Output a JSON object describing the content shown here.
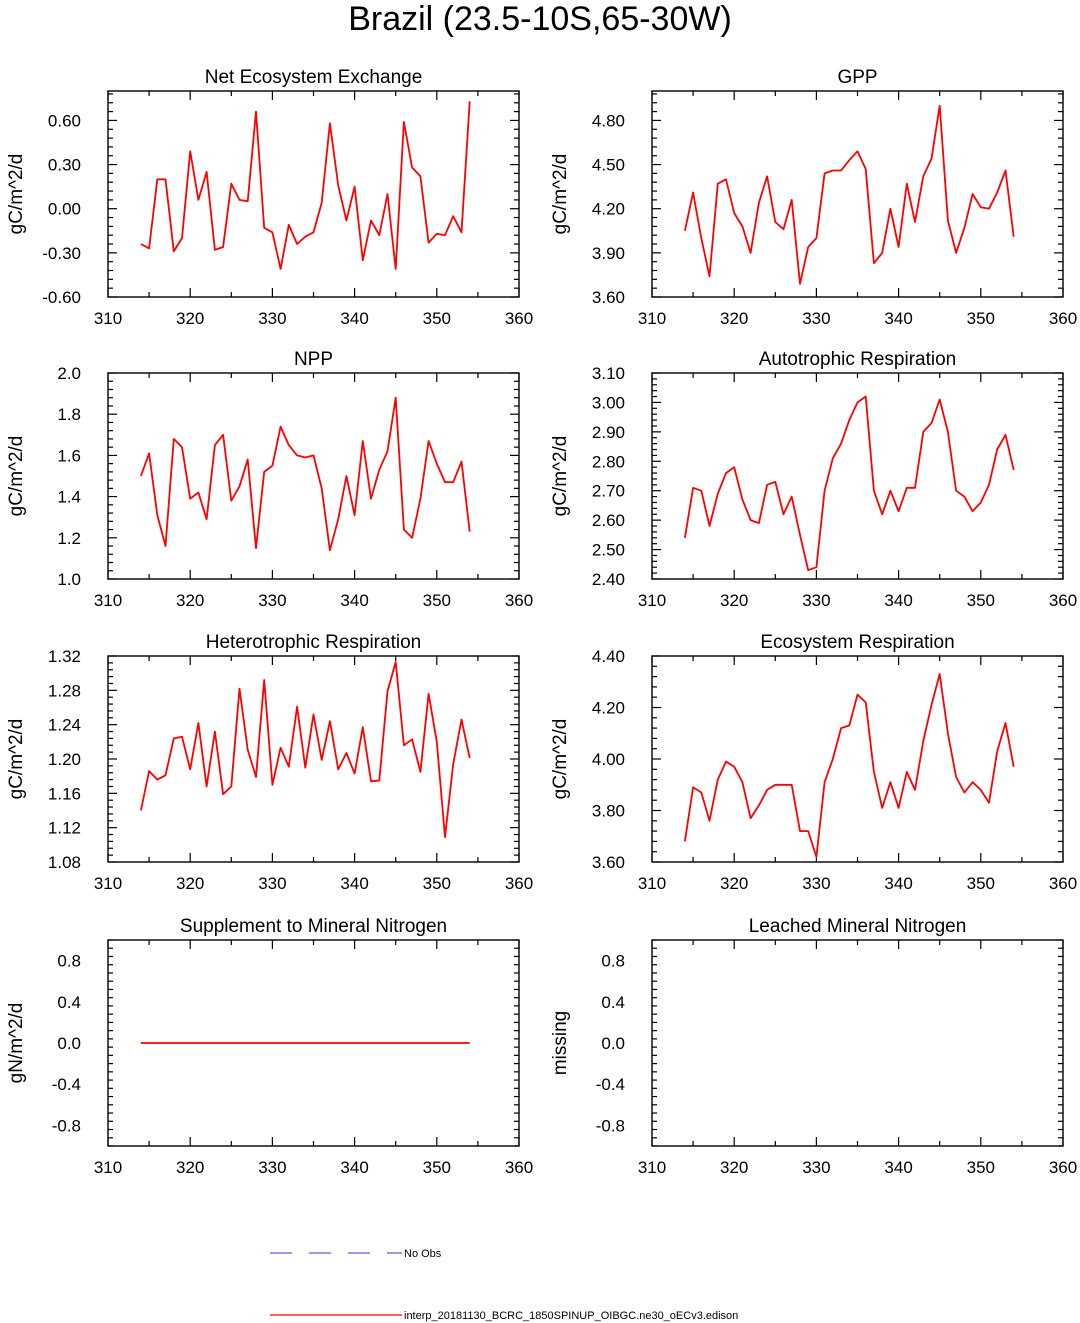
{
  "figure_title": "Brazil (23.5-10S,65-30W)",
  "colors": {
    "model": "#ff0000",
    "obs": "#5a5af0",
    "axis": "#000000"
  },
  "legend": {
    "obs_label": "No Obs",
    "model_label": "interp_20181130_BCRC_1850SPINUP_OIBGC.ne30_oECv3.edison"
  },
  "chart_data": [
    {
      "type": "line",
      "title": "Net Ecosystem Exchange",
      "ylabel": "gC/m^2/d",
      "xlim": [
        310,
        360
      ],
      "ylim": [
        -0.6,
        0.8
      ],
      "xticks": [
        "310",
        "320",
        "330",
        "340",
        "350",
        "360"
      ],
      "yticks": [
        "-0.60",
        "-0.30",
        "0.00",
        "0.30",
        "0.60"
      ],
      "x": [
        314,
        315,
        316,
        317,
        318,
        319,
        320,
        321,
        322,
        323,
        324,
        325,
        326,
        327,
        328,
        329,
        330,
        331,
        332,
        333,
        334,
        335,
        336,
        337,
        338,
        339,
        340,
        341,
        342,
        343,
        344,
        345,
        346,
        347,
        348,
        349,
        350,
        351,
        352,
        353,
        354
      ],
      "values": [
        -0.24,
        -0.27,
        0.2,
        0.2,
        -0.29,
        -0.2,
        0.39,
        0.06,
        0.25,
        -0.28,
        -0.26,
        0.17,
        0.06,
        0.05,
        0.66,
        -0.13,
        -0.16,
        -0.41,
        -0.11,
        -0.24,
        -0.19,
        -0.16,
        0.04,
        0.58,
        0.16,
        -0.08,
        0.15,
        -0.35,
        -0.08,
        -0.18,
        0.1,
        -0.41,
        0.59,
        0.28,
        0.22,
        -0.23,
        -0.17,
        -0.18,
        -0.05,
        -0.16,
        0.73
      ]
    },
    {
      "type": "line",
      "title": "GPP",
      "ylabel": "gC/m^2/d",
      "xlim": [
        310,
        360
      ],
      "ylim": [
        3.6,
        5.0
      ],
      "xticks": [
        "310",
        "320",
        "330",
        "340",
        "350",
        "360"
      ],
      "yticks": [
        "3.60",
        "3.90",
        "4.20",
        "4.50",
        "4.80"
      ],
      "x": [
        314,
        315,
        316,
        317,
        318,
        319,
        320,
        321,
        322,
        323,
        324,
        325,
        326,
        327,
        328,
        329,
        330,
        331,
        332,
        333,
        334,
        335,
        336,
        337,
        338,
        339,
        340,
        341,
        342,
        343,
        344,
        345,
        346,
        347,
        348,
        349,
        350,
        351,
        352,
        353,
        354
      ],
      "values": [
        4.05,
        4.31,
        4.0,
        3.74,
        4.37,
        4.4,
        4.17,
        4.08,
        3.9,
        4.24,
        4.42,
        4.11,
        4.06,
        4.26,
        3.69,
        3.94,
        4.0,
        4.44,
        4.46,
        4.46,
        4.53,
        4.59,
        4.47,
        3.83,
        3.9,
        4.2,
        3.94,
        4.37,
        4.11,
        4.42,
        4.54,
        4.9,
        4.12,
        3.9,
        4.07,
        4.3,
        4.21,
        4.2,
        4.31,
        4.46,
        4.01
      ]
    },
    {
      "type": "line",
      "title": "NPP",
      "ylabel": "gC/m^2/d",
      "xlim": [
        310,
        360
      ],
      "ylim": [
        1.0,
        2.0
      ],
      "xticks": [
        "310",
        "320",
        "330",
        "340",
        "350",
        "360"
      ],
      "yticks": [
        "1.0",
        "1.2",
        "1.4",
        "1.6",
        "1.8",
        "2.0"
      ],
      "x": [
        314,
        315,
        316,
        317,
        318,
        319,
        320,
        321,
        322,
        323,
        324,
        325,
        326,
        327,
        328,
        329,
        330,
        331,
        332,
        333,
        334,
        335,
        336,
        337,
        338,
        339,
        340,
        341,
        342,
        343,
        344,
        345,
        346,
        347,
        348,
        349,
        350,
        351,
        352,
        353,
        354
      ],
      "values": [
        1.5,
        1.61,
        1.31,
        1.16,
        1.68,
        1.64,
        1.39,
        1.42,
        1.29,
        1.65,
        1.7,
        1.38,
        1.45,
        1.58,
        1.15,
        1.52,
        1.55,
        1.74,
        1.65,
        1.6,
        1.59,
        1.6,
        1.44,
        1.14,
        1.29,
        1.5,
        1.31,
        1.67,
        1.39,
        1.53,
        1.62,
        1.88,
        1.24,
        1.2,
        1.39,
        1.67,
        1.56,
        1.47,
        1.47,
        1.57,
        1.23
      ]
    },
    {
      "type": "line",
      "title": "Autotrophic Respiration",
      "ylabel": "gC/m^2/d",
      "xlim": [
        310,
        360
      ],
      "ylim": [
        2.4,
        3.1
      ],
      "xticks": [
        "310",
        "320",
        "330",
        "340",
        "350",
        "360"
      ],
      "yticks": [
        "2.40",
        "2.50",
        "2.60",
        "2.70",
        "2.80",
        "2.90",
        "3.00",
        "3.10"
      ],
      "x": [
        314,
        315,
        316,
        317,
        318,
        319,
        320,
        321,
        322,
        323,
        324,
        325,
        326,
        327,
        328,
        329,
        330,
        331,
        332,
        333,
        334,
        335,
        336,
        337,
        338,
        339,
        340,
        341,
        342,
        343,
        344,
        345,
        346,
        347,
        348,
        349,
        350,
        351,
        352,
        353,
        354
      ],
      "values": [
        2.54,
        2.71,
        2.7,
        2.58,
        2.69,
        2.76,
        2.78,
        2.67,
        2.6,
        2.59,
        2.72,
        2.73,
        2.62,
        2.68,
        2.55,
        2.43,
        2.44,
        2.7,
        2.81,
        2.86,
        2.94,
        3.0,
        3.02,
        2.7,
        2.62,
        2.7,
        2.63,
        2.71,
        2.71,
        2.9,
        2.93,
        3.01,
        2.9,
        2.7,
        2.68,
        2.63,
        2.66,
        2.72,
        2.84,
        2.89,
        2.77
      ]
    },
    {
      "type": "line",
      "title": "Heterotrophic Respiration",
      "ylabel": "gC/m^2/d",
      "xlim": [
        310,
        360
      ],
      "ylim": [
        1.08,
        1.32
      ],
      "xticks": [
        "310",
        "320",
        "330",
        "340",
        "350",
        "360"
      ],
      "yticks": [
        "1.08",
        "1.12",
        "1.16",
        "1.20",
        "1.24",
        "1.28",
        "1.32"
      ],
      "x": [
        314,
        315,
        316,
        317,
        318,
        319,
        320,
        321,
        322,
        323,
        324,
        325,
        326,
        327,
        328,
        329,
        330,
        331,
        332,
        333,
        334,
        335,
        336,
        337,
        338,
        339,
        340,
        341,
        342,
        343,
        344,
        345,
        346,
        347,
        348,
        349,
        350,
        351,
        352,
        353,
        354
      ],
      "values": [
        1.14,
        1.186,
        1.176,
        1.181,
        1.224,
        1.226,
        1.188,
        1.242,
        1.168,
        1.232,
        1.159,
        1.168,
        1.282,
        1.211,
        1.179,
        1.292,
        1.17,
        1.213,
        1.191,
        1.261,
        1.19,
        1.252,
        1.199,
        1.244,
        1.188,
        1.207,
        1.183,
        1.237,
        1.174,
        1.175,
        1.279,
        1.313,
        1.216,
        1.223,
        1.185,
        1.276,
        1.22,
        1.109,
        1.194,
        1.246,
        1.201
      ]
    },
    {
      "type": "line",
      "title": "Ecosystem Respiration",
      "ylabel": "gC/m^2/d",
      "xlim": [
        310,
        360
      ],
      "ylim": [
        3.6,
        4.4
      ],
      "xticks": [
        "310",
        "320",
        "330",
        "340",
        "350",
        "360"
      ],
      "yticks": [
        "3.60",
        "3.80",
        "4.00",
        "4.20",
        "4.40"
      ],
      "x": [
        314,
        315,
        316,
        317,
        318,
        319,
        320,
        321,
        322,
        323,
        324,
        325,
        326,
        327,
        328,
        329,
        330,
        331,
        332,
        333,
        334,
        335,
        336,
        337,
        338,
        339,
        340,
        341,
        342,
        343,
        344,
        345,
        346,
        347,
        348,
        349,
        350,
        351,
        352,
        353,
        354
      ],
      "values": [
        3.68,
        3.89,
        3.87,
        3.76,
        3.92,
        3.99,
        3.97,
        3.91,
        3.77,
        3.82,
        3.88,
        3.9,
        3.9,
        3.9,
        3.72,
        3.72,
        3.62,
        3.91,
        4.0,
        4.12,
        4.13,
        4.25,
        4.22,
        3.95,
        3.81,
        3.91,
        3.81,
        3.95,
        3.88,
        4.07,
        4.21,
        4.33,
        4.1,
        3.93,
        3.87,
        3.91,
        3.88,
        3.83,
        4.03,
        4.14,
        3.97
      ]
    },
    {
      "type": "line",
      "title": "Supplement to Mineral Nitrogen",
      "ylabel": "gN/m^2/d",
      "xlim": [
        310,
        360
      ],
      "ylim": [
        -1.0,
        1.0
      ],
      "xticks": [
        "310",
        "320",
        "330",
        "340",
        "350",
        "360"
      ],
      "yticks": [
        "-0.8",
        "-0.4",
        "0.0",
        "0.4",
        "0.8"
      ],
      "x": [
        314,
        354
      ],
      "values": [
        0.0,
        0.0
      ]
    },
    {
      "type": "line",
      "title": "Leached Mineral Nitrogen",
      "ylabel": "missing",
      "xlim": [
        310,
        360
      ],
      "ylim": [
        -1.0,
        1.0
      ],
      "xticks": [
        "310",
        "320",
        "330",
        "340",
        "350",
        "360"
      ],
      "yticks": [
        "-0.8",
        "-0.4",
        "0.0",
        "0.4",
        "0.8"
      ],
      "x": [],
      "values": []
    }
  ]
}
